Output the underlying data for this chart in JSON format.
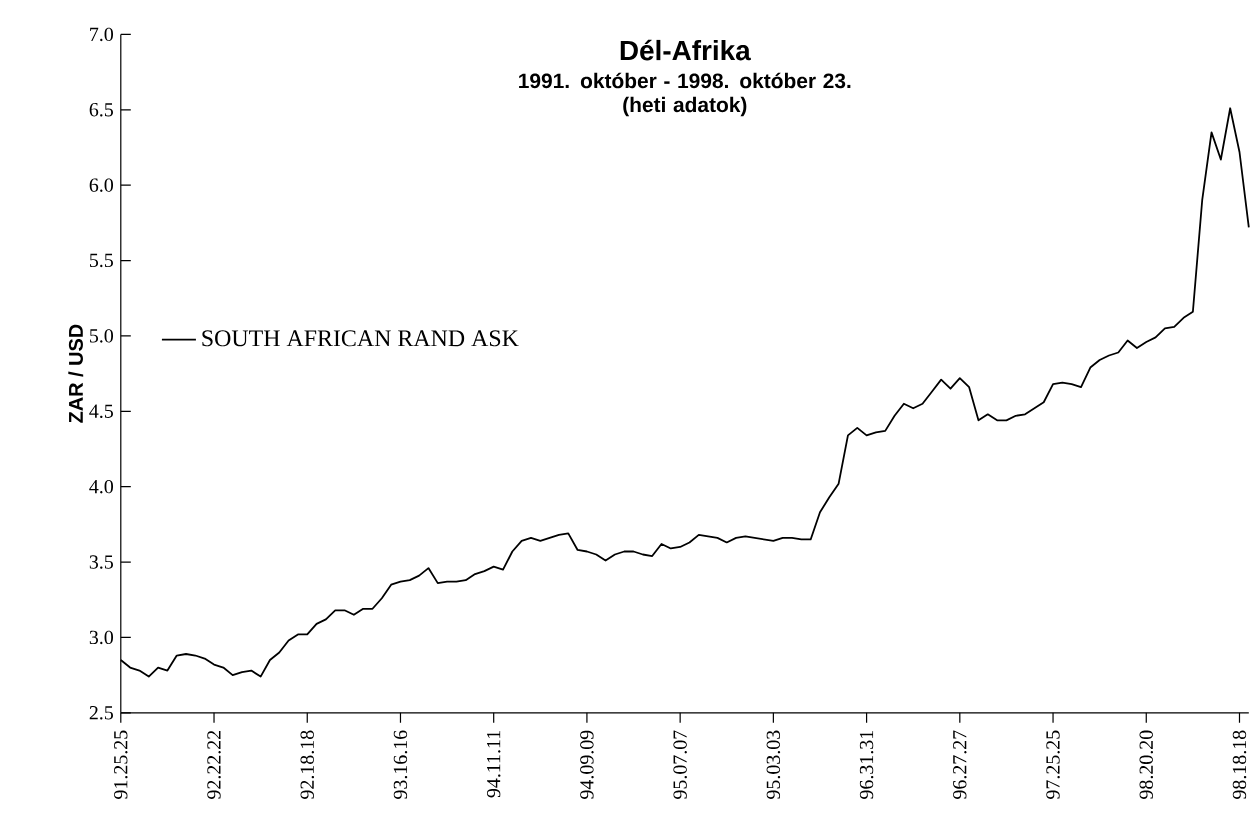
{
  "chart_data": {
    "type": "line",
    "title": "Dél-Afrika",
    "subtitle": "1991. október - 1998. október 23.\n(heti adatok)",
    "ylabel": "ZAR / USD",
    "categories": [
      "91.25.25",
      null,
      null,
      null,
      null,
      null,
      null,
      null,
      null,
      null,
      "92.22.22",
      null,
      null,
      null,
      null,
      null,
      null,
      null,
      null,
      null,
      "92.18.18",
      null,
      null,
      null,
      null,
      null,
      null,
      null,
      null,
      null,
      "93.16.16",
      null,
      null,
      null,
      null,
      null,
      null,
      null,
      null,
      null,
      "94.11.11",
      null,
      null,
      null,
      null,
      null,
      null,
      null,
      null,
      null,
      "94.09.09",
      null,
      null,
      null,
      null,
      null,
      null,
      null,
      null,
      null,
      "95.07.07",
      null,
      null,
      null,
      null,
      null,
      null,
      null,
      null,
      null,
      "95.03.03",
      null,
      null,
      null,
      null,
      null,
      null,
      null,
      null,
      null,
      "96.31.31",
      null,
      null,
      null,
      null,
      null,
      null,
      null,
      null,
      null,
      "96.27.27",
      null,
      null,
      null,
      null,
      null,
      null,
      null,
      null,
      null,
      "97.25.25",
      null,
      null,
      null,
      null,
      null,
      null,
      null,
      null,
      null,
      "98.20.20",
      null,
      null,
      null,
      null,
      null,
      null,
      null,
      null,
      null,
      "98.18.18",
      null
    ],
    "series": [
      {
        "name": "SOUTH AFRICAN RAND ASK",
        "color": "#000000",
        "values": [
          2.85,
          2.8,
          2.78,
          2.74,
          2.8,
          2.78,
          2.88,
          2.89,
          2.88,
          2.86,
          2.82,
          2.8,
          2.75,
          2.77,
          2.78,
          2.74,
          2.85,
          2.9,
          2.98,
          3.02,
          3.02,
          3.09,
          3.12,
          3.18,
          3.18,
          3.15,
          3.19,
          3.19,
          3.26,
          3.35,
          3.37,
          3.38,
          3.41,
          3.46,
          3.36,
          3.37,
          3.37,
          3.38,
          3.42,
          3.44,
          3.47,
          3.45,
          3.57,
          3.64,
          3.66,
          3.64,
          3.66,
          3.68,
          3.69,
          3.58,
          3.57,
          3.55,
          3.51,
          3.55,
          3.57,
          3.57,
          3.55,
          3.54,
          3.62,
          3.59,
          3.6,
          3.63,
          3.68,
          3.67,
          3.66,
          3.63,
          3.66,
          3.67,
          3.66,
          3.65,
          3.64,
          3.66,
          3.66,
          3.65,
          3.65,
          3.83,
          3.93,
          4.02,
          4.34,
          4.39,
          4.34,
          4.36,
          4.37,
          4.47,
          4.55,
          4.52,
          4.55,
          4.63,
          4.71,
          4.65,
          4.72,
          4.66,
          4.44,
          4.48,
          4.44,
          4.44,
          4.47,
          4.48,
          4.52,
          4.56,
          4.68,
          4.69,
          4.68,
          4.66,
          4.79,
          4.84,
          4.87,
          4.89,
          4.97,
          4.92,
          4.96,
          4.99,
          5.05,
          5.06,
          5.12,
          5.16,
          5.9,
          6.35,
          6.17,
          6.51,
          6.22,
          5.72
        ]
      }
    ],
    "ylim": [
      2.5,
      7.0
    ],
    "yticks": [
      {
        "value": 2.5,
        "label": "2.5"
      },
      {
        "value": 3,
        "label": "3.0"
      },
      {
        "value": 3.5,
        "label": "3.5"
      },
      {
        "value": 4,
        "label": "4.0"
      },
      {
        "value": 4.5,
        "label": "4.5"
      },
      {
        "value": 5,
        "label": "5.0"
      },
      {
        "value": 5.5,
        "label": "5.5"
      },
      {
        "value": 6,
        "label": "6.0"
      },
      {
        "value": 6.5,
        "label": "6.5"
      },
      {
        "value": 7,
        "label": "7.0"
      }
    ],
    "legend": "left",
    "marker": "none",
    "line_style": "solid"
  }
}
